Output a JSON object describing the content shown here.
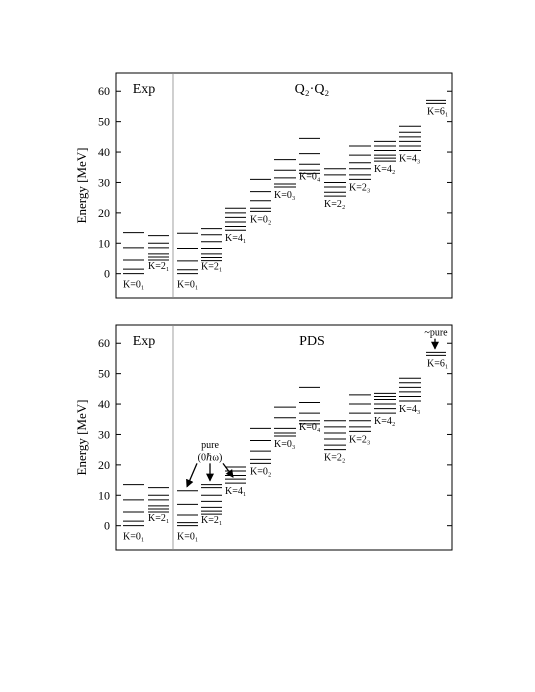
{
  "chart_data": [
    {
      "type": "level-scheme",
      "ylabel": "Energy [MeV]",
      "ylim": [
        -8,
        66
      ],
      "yticks": [
        0,
        10,
        20,
        30,
        40,
        50,
        60
      ],
      "grid": false,
      "left_panel_title": "Exp",
      "right_panel_title": "Q₂·Q₂",
      "left_columns": [
        {
          "label": "K=0₁",
          "levels": [
            0,
            1.5,
            4.5,
            8.5,
            13.5
          ]
        },
        {
          "label": "K=2₁",
          "levels": [
            4.5,
            5.5,
            6.5,
            8.5,
            10,
            12.5
          ]
        }
      ],
      "right_columns": [
        {
          "label": "K=0₁",
          "levels": [
            0,
            1.3,
            4.2,
            8.3,
            13.3
          ]
        },
        {
          "label": "K=2₁",
          "levels": [
            4.3,
            5.3,
            6.5,
            8.3,
            10.5,
            12.8,
            14.8
          ]
        },
        {
          "label": "K=4₁",
          "levels": [
            14.3,
            15.5,
            17,
            18.5,
            20,
            21.5
          ]
        },
        {
          "label": "K=0₂",
          "levels": [
            20.5,
            21.5,
            24,
            27,
            31
          ]
        },
        {
          "label": "K=0₃",
          "levels": [
            28.5,
            29.5,
            31.5,
            34,
            37.5
          ]
        },
        {
          "label": "K=0₄",
          "levels": [
            33,
            34,
            36,
            39.5,
            44.5
          ]
        },
        {
          "label": "K=2₂",
          "levels": [
            25.5,
            26.8,
            28.5,
            30,
            32.5,
            34.5
          ]
        },
        {
          "label": "K=2₃",
          "levels": [
            31,
            32.5,
            34.5,
            36.5,
            39,
            42
          ]
        },
        {
          "label": "K=4₂",
          "levels": [
            37,
            38,
            39,
            40.5,
            42,
            43.5
          ]
        },
        {
          "label": "K=4₃",
          "levels": [
            40.5,
            42,
            43.5,
            45,
            46.5,
            48.5
          ]
        },
        {
          "label": "K=6₁",
          "levels": [
            56,
            57
          ]
        }
      ],
      "annotations": []
    },
    {
      "type": "level-scheme",
      "ylabel": "Energy [MeV]",
      "ylim": [
        -8,
        66
      ],
      "yticks": [
        0,
        10,
        20,
        30,
        40,
        50,
        60
      ],
      "grid": false,
      "left_panel_title": "Exp",
      "right_panel_title": "PDS",
      "left_columns": [
        {
          "label": "K=0₁",
          "levels": [
            0,
            1.5,
            4.5,
            8.5,
            13.5
          ]
        },
        {
          "label": "K=2₁",
          "levels": [
            4.5,
            5.5,
            6.5,
            8.5,
            10,
            12.5
          ]
        }
      ],
      "right_columns": [
        {
          "label": "K=0₁",
          "levels": [
            0,
            1,
            3.5,
            7,
            11.5
          ]
        },
        {
          "label": "K=2₁",
          "levels": [
            3.8,
            4.8,
            6,
            8,
            10,
            12.5,
            13.5
          ]
        },
        {
          "label": "K=4₁",
          "levels": [
            14,
            15.3,
            16.5,
            18,
            19.3
          ]
        },
        {
          "label": "K=0₂",
          "levels": [
            20.5,
            21.8,
            24.5,
            28,
            32
          ]
        },
        {
          "label": "K=0₃",
          "levels": [
            29.5,
            30.5,
            32,
            35.5,
            39
          ]
        },
        {
          "label": "K=0₄",
          "levels": [
            33.5,
            34.5,
            37,
            40.5,
            45.5
          ]
        },
        {
          "label": "K=2₂",
          "levels": [
            25,
            26.5,
            28.5,
            30.5,
            32.5,
            34.5
          ]
        },
        {
          "label": "K=2₃",
          "levels": [
            31,
            32.5,
            34.5,
            37,
            40,
            43
          ]
        },
        {
          "label": "K=4₂",
          "levels": [
            37,
            38.5,
            40,
            41.5,
            42.5,
            43.5
          ]
        },
        {
          "label": "K=4₃",
          "levels": [
            41,
            42.5,
            44,
            45.5,
            47,
            48.5
          ]
        },
        {
          "label": "K=6₁",
          "levels": [
            56,
            57
          ]
        }
      ],
      "annotations": [
        {
          "text": "pure",
          "column": 1
        },
        {
          "text": "(0ℏω)",
          "column": 1
        },
        {
          "text": "~pure",
          "column": 10
        }
      ]
    }
  ]
}
